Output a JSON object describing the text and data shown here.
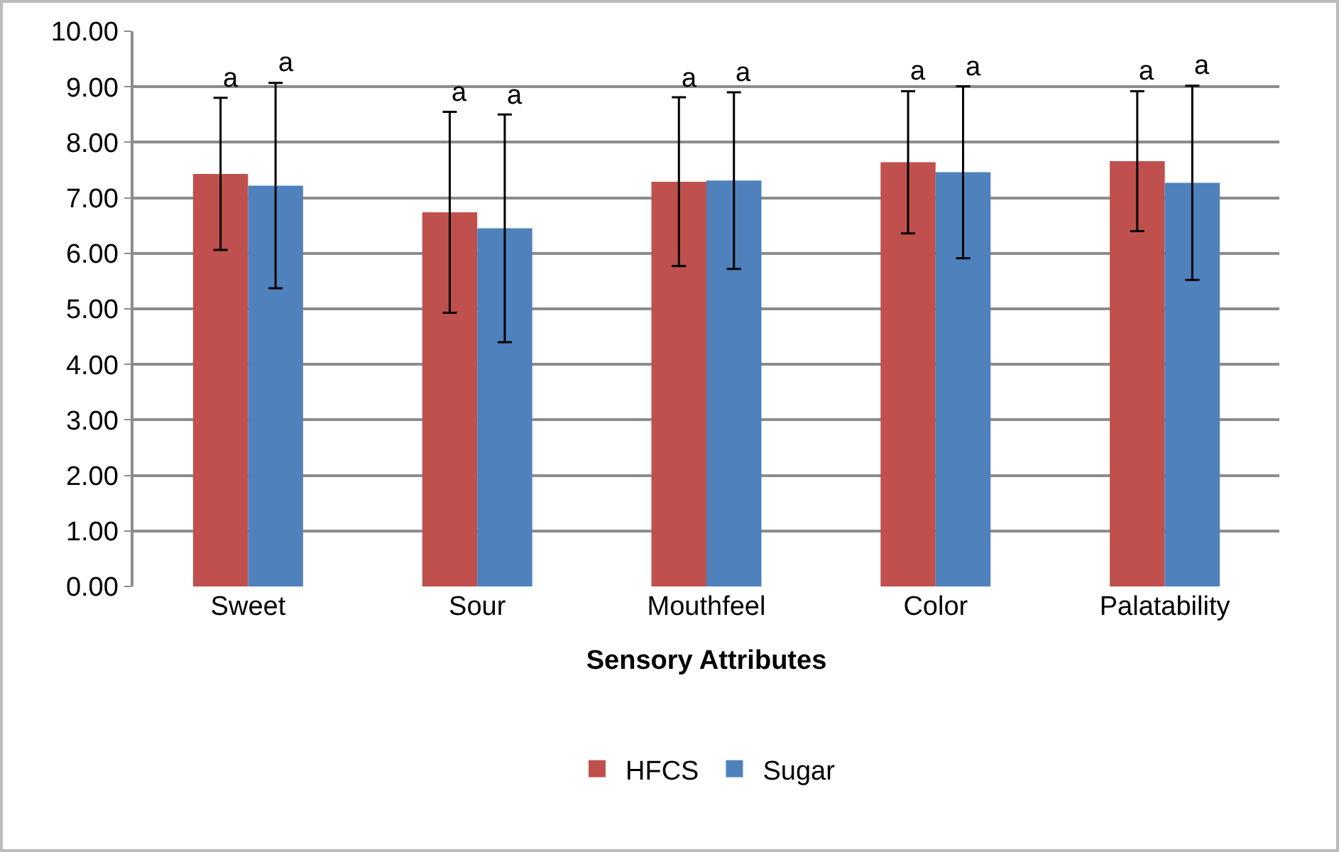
{
  "chart_data": {
    "type": "bar",
    "xlabel": "Sensory Attributes",
    "categories": [
      "Sweet",
      "Sour",
      "Mouthfeel",
      "Color",
      "Palatability"
    ],
    "series": [
      {
        "name": "HFCS",
        "color": "#c0504d",
        "values": [
          7.43,
          6.74,
          7.29,
          7.64,
          7.66
        ],
        "errors": [
          1.37,
          1.81,
          1.52,
          1.28,
          1.26
        ]
      },
      {
        "name": "Sugar",
        "color": "#4f81bd",
        "values": [
          7.22,
          6.45,
          7.31,
          7.46,
          7.27
        ],
        "errors": [
          1.85,
          2.05,
          1.59,
          1.55,
          1.75
        ]
      }
    ],
    "annotations": [
      "a",
      "a",
      "a",
      "a",
      "a",
      "a",
      "a",
      "a",
      "a",
      "a"
    ],
    "ylim": [
      0,
      10
    ],
    "yticks": [
      {
        "value": 0,
        "label": "0.00"
      },
      {
        "value": 1,
        "label": "1.00"
      },
      {
        "value": 2,
        "label": "2.00"
      },
      {
        "value": 3,
        "label": "3.00"
      },
      {
        "value": 4,
        "label": "4.00"
      },
      {
        "value": 5,
        "label": "5.00"
      },
      {
        "value": 6,
        "label": "6.00"
      },
      {
        "value": 7,
        "label": "7.00"
      },
      {
        "value": 8,
        "label": "8.00"
      },
      {
        "value": 9,
        "label": "9.00"
      },
      {
        "value": 10,
        "label": "10.00"
      }
    ],
    "grid": "y",
    "legend": "bottom"
  }
}
